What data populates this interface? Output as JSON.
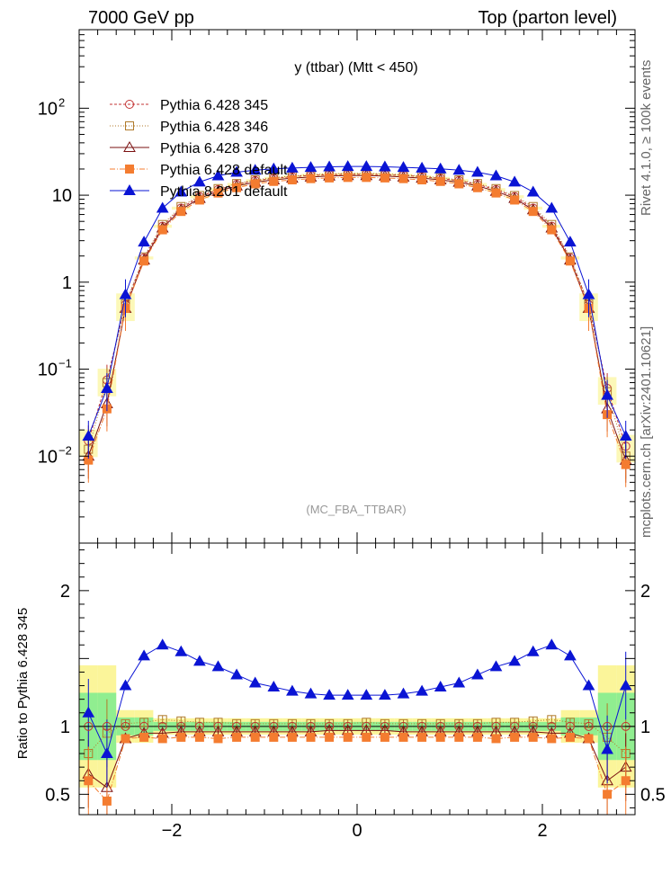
{
  "header": {
    "left": "7000 GeV pp",
    "right": "Top (parton level)"
  },
  "side_labels": {
    "rivet": "Rivet 4.1.0, ≥ 100k events",
    "source": "mcplots.cern.ch [arXiv:2401.10621]"
  },
  "chart_data": [
    {
      "type": "line",
      "panel": "main",
      "title": "y (ttbar) (Mtt < 450)",
      "watermark": "(MC_FBA_TTBAR)",
      "xlabel": "",
      "ylabel": "",
      "yscale": "log",
      "xlim": [
        -3.0,
        3.0
      ],
      "ylim": [
        0.001,
        800
      ],
      "ytick_labels": [
        {
          "value": 100,
          "base": "10",
          "exp": "2"
        },
        {
          "value": 10,
          "base": "10",
          "exp": ""
        },
        {
          "value": 1,
          "base": "1",
          "exp": ""
        },
        {
          "value": 0.1,
          "base": "10",
          "exp": "−1"
        },
        {
          "value": 0.01,
          "base": "10",
          "exp": "−2"
        }
      ],
      "legend": [
        {
          "name": "Pythia 6.428 345",
          "color": "#c33333",
          "marker": "circle-open",
          "dash": "3,2"
        },
        {
          "name": "Pythia 6.428 346",
          "color": "#b07a2a",
          "marker": "square-open",
          "dash": "1,2"
        },
        {
          "name": "Pythia 6.428 370",
          "color": "#7a1010",
          "marker": "triangle-open",
          "dash": ""
        },
        {
          "name": "Pythia 6.428 default",
          "color": "#f47c30",
          "marker": "square-filled",
          "dash": "6,2,1,2"
        },
        {
          "name": "Pythia 8.201 default",
          "color": "#0a14d4",
          "marker": "triangle-filled",
          "dash": ""
        }
      ],
      "x": [
        -2.9,
        -2.7,
        -2.5,
        -2.3,
        -2.1,
        -1.9,
        -1.7,
        -1.5,
        -1.3,
        -1.1,
        -0.9,
        -0.7,
        -0.5,
        -0.3,
        -0.1,
        0.1,
        0.3,
        0.5,
        0.7,
        0.9,
        1.1,
        1.3,
        1.5,
        1.7,
        1.9,
        2.1,
        2.3,
        2.5,
        2.7,
        2.9
      ],
      "series": [
        {
          "name": "Pythia 6.428 345",
          "values": [
            0.015,
            0.075,
            0.55,
            1.9,
            4.4,
            7.1,
            9.6,
            11.6,
            13.3,
            14.7,
            15.6,
            16.3,
            16.9,
            17.2,
            17.4,
            17.4,
            17.2,
            16.9,
            16.3,
            15.6,
            14.7,
            13.3,
            11.6,
            9.6,
            7.1,
            4.4,
            1.9,
            0.55,
            0.06,
            0.013
          ]
        },
        {
          "name": "Pythia 6.428 346",
          "values": [
            0.012,
            0.07,
            0.56,
            1.95,
            4.6,
            7.4,
            9.9,
            11.9,
            13.6,
            15.0,
            15.9,
            16.6,
            17.2,
            17.6,
            17.8,
            17.8,
            17.6,
            17.2,
            16.6,
            15.9,
            15.0,
            13.6,
            11.9,
            9.9,
            7.4,
            4.6,
            1.95,
            0.56,
            0.055,
            0.01
          ]
        },
        {
          "name": "Pythia 6.428 370",
          "values": [
            0.01,
            0.04,
            0.5,
            1.8,
            4.2,
            6.8,
            9.2,
            11.1,
            12.8,
            14.1,
            15.0,
            15.7,
            16.2,
            16.6,
            16.8,
            16.8,
            16.6,
            16.2,
            15.7,
            15.0,
            14.1,
            12.8,
            11.1,
            9.2,
            6.8,
            4.2,
            1.8,
            0.5,
            0.035,
            0.009
          ]
        },
        {
          "name": "Pythia 6.428 default",
          "values": [
            0.009,
            0.035,
            0.5,
            1.75,
            4.0,
            6.5,
            8.8,
            10.6,
            12.2,
            13.5,
            14.4,
            15.0,
            15.5,
            15.8,
            16.0,
            16.0,
            15.8,
            15.5,
            15.0,
            14.4,
            13.5,
            12.2,
            10.6,
            8.8,
            6.5,
            4.0,
            1.75,
            0.5,
            0.03,
            0.008
          ]
        },
        {
          "name": "Pythia 8.201 default",
          "values": [
            0.017,
            0.06,
            0.72,
            2.9,
            7.1,
            10.9,
            14.2,
            16.7,
            18.4,
            19.4,
            20.1,
            20.5,
            20.9,
            21.2,
            21.4,
            21.4,
            21.2,
            20.9,
            20.5,
            20.1,
            19.4,
            18.4,
            16.7,
            14.2,
            10.9,
            7.1,
            2.9,
            0.72,
            0.05,
            0.017
          ]
        }
      ]
    },
    {
      "type": "line",
      "panel": "ratio",
      "xlabel": "",
      "ylabel": "Ratio to Pythia 6.428 345",
      "xlim": [
        -3.0,
        3.0
      ],
      "ylim": [
        0.35,
        2.35
      ],
      "xtick_labels": [
        {
          "value": -2,
          "label": "−2"
        },
        {
          "value": 0,
          "label": "0"
        },
        {
          "value": 2,
          "label": "2"
        }
      ],
      "ytick_labels": [
        {
          "value": 2,
          "label": "2"
        },
        {
          "value": 1,
          "label": "1"
        },
        {
          "value": 0.5,
          "label": "0.5"
        }
      ],
      "x": [
        -2.9,
        -2.7,
        -2.5,
        -2.3,
        -2.1,
        -1.9,
        -1.7,
        -1.5,
        -1.3,
        -1.1,
        -0.9,
        -0.7,
        -0.5,
        -0.3,
        -0.1,
        0.1,
        0.3,
        0.5,
        0.7,
        0.9,
        1.1,
        1.3,
        1.5,
        1.7,
        1.9,
        2.1,
        2.3,
        2.5,
        2.7,
        2.9
      ],
      "series": [
        {
          "name": "Pythia 6.428 346",
          "values": [
            0.8,
            0.95,
            1.02,
            1.03,
            1.05,
            1.04,
            1.03,
            1.03,
            1.02,
            1.02,
            1.02,
            1.02,
            1.02,
            1.02,
            1.02,
            1.03,
            1.02,
            1.02,
            1.02,
            1.02,
            1.02,
            1.02,
            1.03,
            1.03,
            1.04,
            1.05,
            1.03,
            1.02,
            0.92,
            0.8
          ]
        },
        {
          "name": "Pythia 6.428 370",
          "values": [
            0.65,
            0.55,
            0.91,
            0.95,
            0.95,
            0.96,
            0.96,
            0.96,
            0.96,
            0.96,
            0.96,
            0.96,
            0.96,
            0.97,
            0.97,
            0.97,
            0.97,
            0.96,
            0.96,
            0.96,
            0.96,
            0.96,
            0.96,
            0.96,
            0.96,
            0.95,
            0.95,
            0.91,
            0.6,
            0.7
          ]
        },
        {
          "name": "Pythia 6.428 default",
          "values": [
            0.6,
            0.45,
            0.91,
            0.92,
            0.91,
            0.92,
            0.92,
            0.91,
            0.92,
            0.92,
            0.92,
            0.92,
            0.92,
            0.92,
            0.92,
            0.92,
            0.92,
            0.92,
            0.92,
            0.92,
            0.92,
            0.92,
            0.91,
            0.92,
            0.92,
            0.91,
            0.92,
            0.91,
            0.5,
            0.6
          ]
        },
        {
          "name": "Pythia 8.201 default",
          "values": [
            1.1,
            0.8,
            1.3,
            1.52,
            1.6,
            1.55,
            1.48,
            1.44,
            1.38,
            1.32,
            1.29,
            1.26,
            1.24,
            1.23,
            1.23,
            1.23,
            1.23,
            1.24,
            1.26,
            1.29,
            1.32,
            1.38,
            1.44,
            1.48,
            1.55,
            1.6,
            1.52,
            1.3,
            0.83,
            1.3
          ]
        }
      ]
    }
  ]
}
